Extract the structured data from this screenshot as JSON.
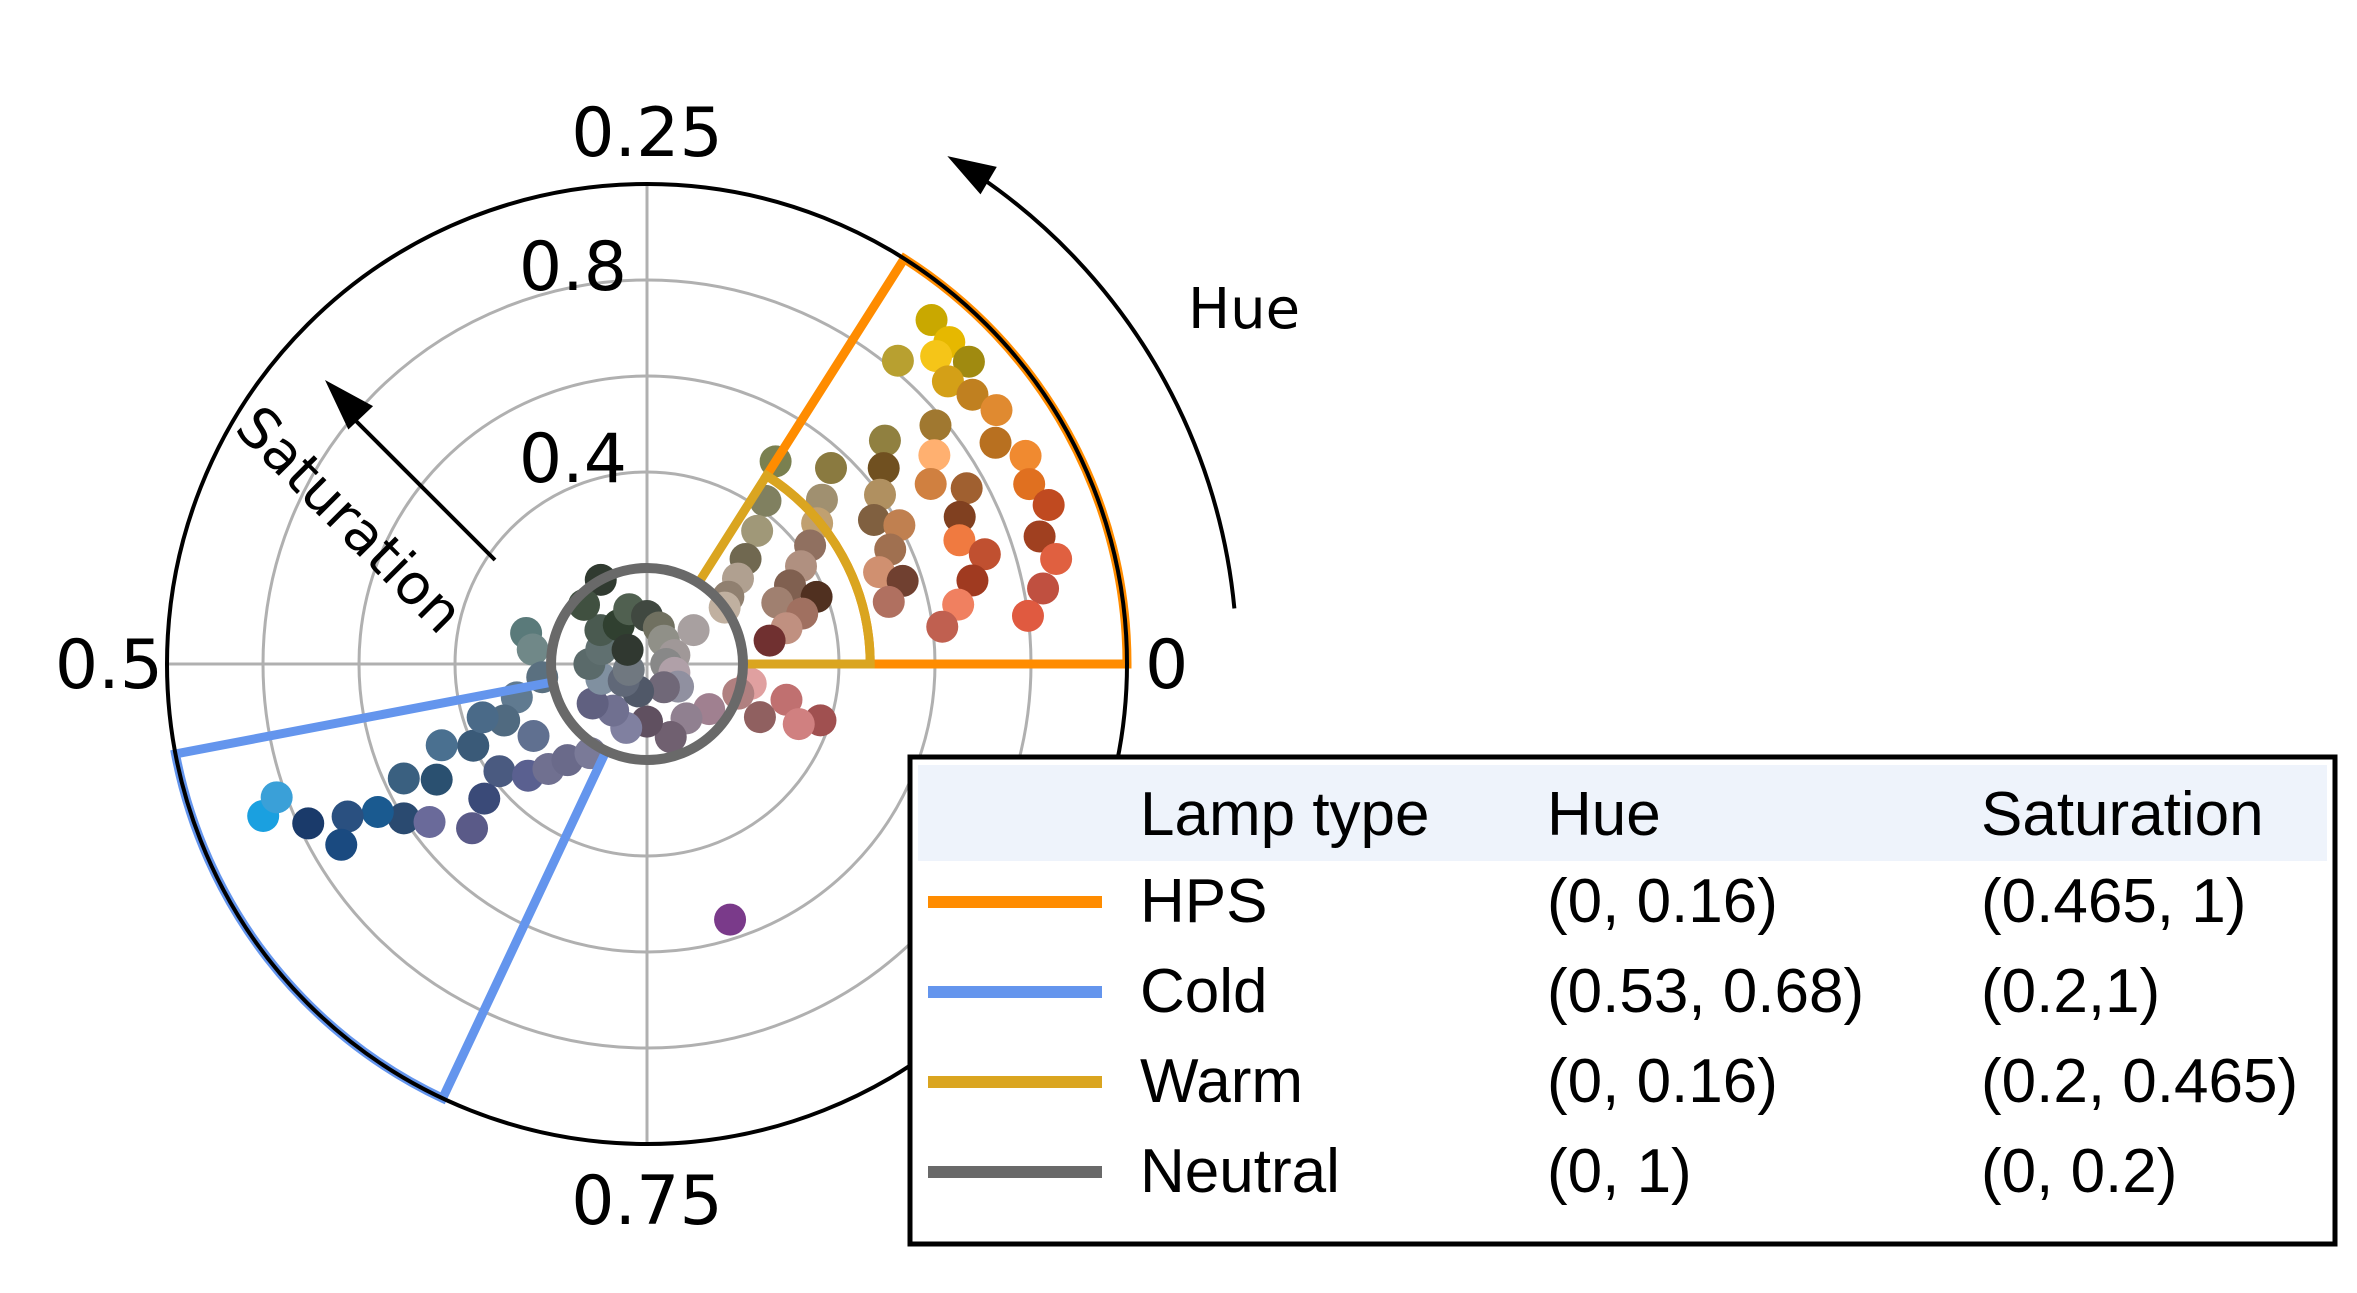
{
  "chart_data": {
    "type": "scatter",
    "projection": "polar",
    "angular_axis": {
      "variable": "hue",
      "direction": "counterclockwise",
      "zero_location": "east",
      "range": [
        0,
        1
      ],
      "tick_labels": [
        "0",
        "0.25",
        "0.5",
        "0.75"
      ]
    },
    "radial_axis": {
      "variable": "saturation",
      "range": [
        0,
        1
      ],
      "gridlines": [
        0.2,
        0.4,
        0.6,
        0.8,
        1.0
      ],
      "tick_labels": [
        "0.4",
        "0.8"
      ]
    },
    "grid": true,
    "annotations": {
      "hue_arrow_label": "Hue",
      "saturation_arrow_label": "Saturation"
    },
    "regions": [
      {
        "name": "HPS",
        "color": "#ff8c00",
        "hue": [
          0,
          0.16
        ],
        "saturation": [
          0.465,
          1
        ]
      },
      {
        "name": "Cold",
        "color": "#6495ed",
        "hue": [
          0.53,
          0.68
        ],
        "saturation": [
          0.2,
          1
        ]
      },
      {
        "name": "Warm",
        "color": "#daa520",
        "hue": [
          0,
          0.16
        ],
        "saturation": [
          0.2,
          0.465
        ]
      },
      {
        "name": "Neutral",
        "color": "#696969",
        "hue": [
          0,
          1
        ],
        "saturation": [
          0,
          0.2
        ]
      }
    ],
    "points": [
      {
        "hue": 0.14,
        "sat": 0.93,
        "color": "#c9a800"
      },
      {
        "hue": 0.13,
        "sat": 0.92,
        "color": "#e6b800"
      },
      {
        "hue": 0.12,
        "sat": 0.92,
        "color": "#a08a10"
      },
      {
        "hue": 0.13,
        "sat": 0.88,
        "color": "#f5c518"
      },
      {
        "hue": 0.12,
        "sat": 0.86,
        "color": "#d4a017"
      },
      {
        "hue": 0.14,
        "sat": 0.82,
        "color": "#b8a030"
      },
      {
        "hue": 0.11,
        "sat": 0.88,
        "color": "#c08020"
      },
      {
        "hue": 0.1,
        "sat": 0.9,
        "color": "#e08a30"
      },
      {
        "hue": 0.09,
        "sat": 0.86,
        "color": "#b87020"
      },
      {
        "hue": 0.08,
        "sat": 0.9,
        "color": "#f08a30"
      },
      {
        "hue": 0.07,
        "sat": 0.88,
        "color": "#e07020"
      },
      {
        "hue": 0.06,
        "sat": 0.9,
        "color": "#c04a20"
      },
      {
        "hue": 0.05,
        "sat": 0.86,
        "color": "#a04020"
      },
      {
        "hue": 0.04,
        "sat": 0.88,
        "color": "#e06040"
      },
      {
        "hue": 0.03,
        "sat": 0.84,
        "color": "#c05040"
      },
      {
        "hue": 0.02,
        "sat": 0.8,
        "color": "#e05a40"
      },
      {
        "hue": 0.11,
        "sat": 0.78,
        "color": "#a07830"
      },
      {
        "hue": 0.1,
        "sat": 0.74,
        "color": "#ffb070"
      },
      {
        "hue": 0.09,
        "sat": 0.7,
        "color": "#d08040"
      },
      {
        "hue": 0.08,
        "sat": 0.76,
        "color": "#a06030"
      },
      {
        "hue": 0.07,
        "sat": 0.72,
        "color": "#804020"
      },
      {
        "hue": 0.06,
        "sat": 0.7,
        "color": "#f07a40"
      },
      {
        "hue": 0.05,
        "sat": 0.74,
        "color": "#c05030"
      },
      {
        "hue": 0.04,
        "sat": 0.7,
        "color": "#a03a20"
      },
      {
        "hue": 0.03,
        "sat": 0.66,
        "color": "#f08060"
      },
      {
        "hue": 0.02,
        "sat": 0.62,
        "color": "#c06050"
      },
      {
        "hue": 0.12,
        "sat": 0.68,
        "color": "#908040"
      },
      {
        "hue": 0.11,
        "sat": 0.64,
        "color": "#705020"
      },
      {
        "hue": 0.1,
        "sat": 0.6,
        "color": "#b09060"
      },
      {
        "hue": 0.09,
        "sat": 0.56,
        "color": "#806040"
      },
      {
        "hue": 0.08,
        "sat": 0.6,
        "color": "#c08050"
      },
      {
        "hue": 0.07,
        "sat": 0.56,
        "color": "#a07050"
      },
      {
        "hue": 0.06,
        "sat": 0.52,
        "color": "#d09070"
      },
      {
        "hue": 0.05,
        "sat": 0.56,
        "color": "#704030"
      },
      {
        "hue": 0.04,
        "sat": 0.52,
        "color": "#b07060"
      },
      {
        "hue": 0.13,
        "sat": 0.56,
        "color": "#8a7a40"
      },
      {
        "hue": 0.12,
        "sat": 0.5,
        "color": "#a09070"
      },
      {
        "hue": 0.11,
        "sat": 0.46,
        "color": "#c0a070"
      },
      {
        "hue": 0.1,
        "sat": 0.42,
        "color": "#907060"
      },
      {
        "hue": 0.09,
        "sat": 0.38,
        "color": "#b09080"
      },
      {
        "hue": 0.08,
        "sat": 0.34,
        "color": "#806050"
      },
      {
        "hue": 0.07,
        "sat": 0.3,
        "color": "#a08070"
      },
      {
        "hue": 0.15,
        "sat": 0.42,
        "color": "#808060"
      },
      {
        "hue": 0.14,
        "sat": 0.36,
        "color": "#a09878"
      },
      {
        "hue": 0.13,
        "sat": 0.3,
        "color": "#706850"
      },
      {
        "hue": 0.12,
        "sat": 0.26,
        "color": "#b0a090"
      },
      {
        "hue": 0.11,
        "sat": 0.22,
        "color": "#908070"
      },
      {
        "hue": 0.1,
        "sat": 0.2,
        "color": "#c0b0a0"
      },
      {
        "hue": 0.06,
        "sat": 0.38,
        "color": "#503020"
      },
      {
        "hue": 0.05,
        "sat": 0.34,
        "color": "#a07060"
      },
      {
        "hue": 0.04,
        "sat": 0.3,
        "color": "#c09080"
      },
      {
        "hue": 0.03,
        "sat": 0.26,
        "color": "#703030"
      },
      {
        "hue": 0.16,
        "sat": 0.5,
        "color": "#7a8050"
      },
      {
        "hue": 0.97,
        "sat": 0.22,
        "color": "#e0a0a0"
      },
      {
        "hue": 0.96,
        "sat": 0.3,
        "color": "#c07070"
      },
      {
        "hue": 0.95,
        "sat": 0.38,
        "color": "#a05050"
      },
      {
        "hue": 0.94,
        "sat": 0.34,
        "color": "#d08080"
      },
      {
        "hue": 0.93,
        "sat": 0.26,
        "color": "#906060"
      },
      {
        "hue": 0.95,
        "sat": 0.2,
        "color": "#b08080"
      },
      {
        "hue": 0.8,
        "sat": 0.56,
        "color": "#7a3a8a"
      },
      {
        "hue": 0.9,
        "sat": 0.16,
        "color": "#a08090"
      },
      {
        "hue": 0.85,
        "sat": 0.14,
        "color": "#908090"
      },
      {
        "hue": 0.8,
        "sat": 0.16,
        "color": "#706070"
      },
      {
        "hue": 0.75,
        "sat": 0.12,
        "color": "#605060"
      },
      {
        "hue": 0.7,
        "sat": 0.14,
        "color": "#8080a0"
      },
      {
        "hue": 0.65,
        "sat": 0.12,
        "color": "#707090"
      },
      {
        "hue": 0.6,
        "sat": 0.14,
        "color": "#606080"
      },
      {
        "hue": 0.55,
        "sat": 0.1,
        "color": "#8090a0"
      },
      {
        "hue": 0.5,
        "sat": 0.12,
        "color": "#5a6a6a"
      },
      {
        "hue": 0.45,
        "sat": 0.1,
        "color": "#607070"
      },
      {
        "hue": 0.4,
        "sat": 0.12,
        "color": "#4a5a50"
      },
      {
        "hue": 0.35,
        "sat": 0.1,
        "color": "#304030"
      },
      {
        "hue": 0.3,
        "sat": 0.12,
        "color": "#506050"
      },
      {
        "hue": 0.25,
        "sat": 0.1,
        "color": "#404840"
      },
      {
        "hue": 0.2,
        "sat": 0.08,
        "color": "#707060"
      },
      {
        "hue": 0.15,
        "sat": 0.06,
        "color": "#909088"
      },
      {
        "hue": 0.05,
        "sat": 0.06,
        "color": "#a09898"
      },
      {
        "hue": 0.0,
        "sat": 0.04,
        "color": "#888888"
      },
      {
        "hue": 0.95,
        "sat": 0.06,
        "color": "#b0a0a8"
      },
      {
        "hue": 0.9,
        "sat": 0.08,
        "color": "#9090a0"
      },
      {
        "hue": 0.85,
        "sat": 0.06,
        "color": "#706878"
      },
      {
        "hue": 0.7,
        "sat": 0.06,
        "color": "#505868"
      },
      {
        "hue": 0.6,
        "sat": 0.06,
        "color": "#606878"
      },
      {
        "hue": 0.55,
        "sat": 0.04,
        "color": "#707880"
      },
      {
        "hue": 0.4,
        "sat": 0.05,
        "color": "#303830"
      },
      {
        "hue": 0.1,
        "sat": 0.12,
        "color": "#a8a0a0"
      },
      {
        "hue": 0.33,
        "sat": 0.2,
        "color": "#303a30"
      },
      {
        "hue": 0.38,
        "sat": 0.18,
        "color": "#405040"
      },
      {
        "hue": 0.46,
        "sat": 0.26,
        "color": "#5a7a7a"
      },
      {
        "hue": 0.48,
        "sat": 0.24,
        "color": "#708888"
      },
      {
        "hue": 0.52,
        "sat": 0.22,
        "color": "#5a7080"
      },
      {
        "hue": 0.54,
        "sat": 0.28,
        "color": "#607a90"
      },
      {
        "hue": 0.56,
        "sat": 0.32,
        "color": "#506a80"
      },
      {
        "hue": 0.57,
        "sat": 0.4,
        "color": "#3a5a78"
      },
      {
        "hue": 0.56,
        "sat": 0.46,
        "color": "#4a7090"
      },
      {
        "hue": 0.58,
        "sat": 0.5,
        "color": "#2a5070"
      },
      {
        "hue": 0.57,
        "sat": 0.56,
        "color": "#3a6080"
      },
      {
        "hue": 0.59,
        "sat": 0.6,
        "color": "#2a4a70"
      },
      {
        "hue": 0.58,
        "sat": 0.64,
        "color": "#1a5a90"
      },
      {
        "hue": 0.6,
        "sat": 0.38,
        "color": "#4a5a80"
      },
      {
        "hue": 0.62,
        "sat": 0.34,
        "color": "#5a6090"
      },
      {
        "hue": 0.61,
        "sat": 0.44,
        "color": "#3a4a78"
      },
      {
        "hue": 0.63,
        "sat": 0.3,
        "color": "#707090"
      },
      {
        "hue": 0.64,
        "sat": 0.26,
        "color": "#6a6a8a"
      },
      {
        "hue": 0.66,
        "sat": 0.22,
        "color": "#7a7a98"
      },
      {
        "hue": 0.59,
        "sat": 0.28,
        "color": "#607090"
      },
      {
        "hue": 0.55,
        "sat": 0.36,
        "color": "#4a6a88"
      },
      {
        "hue": 0.56,
        "sat": 0.86,
        "color": "#1aa0e0"
      },
      {
        "hue": 0.555,
        "sat": 0.82,
        "color": "#3aa0d8"
      },
      {
        "hue": 0.57,
        "sat": 0.78,
        "color": "#1a3a6a"
      },
      {
        "hue": 0.575,
        "sat": 0.7,
        "color": "#2a5080"
      },
      {
        "hue": 0.585,
        "sat": 0.74,
        "color": "#1a4a80"
      },
      {
        "hue": 0.6,
        "sat": 0.56,
        "color": "#6a6a9a"
      },
      {
        "hue": 0.62,
        "sat": 0.5,
        "color": "#5a5a88"
      }
    ]
  },
  "legend": {
    "headers": [
      "Lamp type",
      "Hue",
      "Saturation"
    ],
    "rows": [
      {
        "name": "HPS",
        "hue": "(0, 0.16)",
        "saturation": "(0.465, 1)",
        "color": "#ff8c00"
      },
      {
        "name": "Cold",
        "hue": "(0.53, 0.68)",
        "saturation": "(0.2,1)",
        "color": "#6495ed"
      },
      {
        "name": "Warm",
        "hue": "(0, 0.16)",
        "saturation": "(0.2, 0.465)",
        "color": "#daa520"
      },
      {
        "name": "Neutral",
        "hue": "(0, 1)",
        "saturation": "(0, 0.2)",
        "color": "#696969"
      }
    ]
  }
}
